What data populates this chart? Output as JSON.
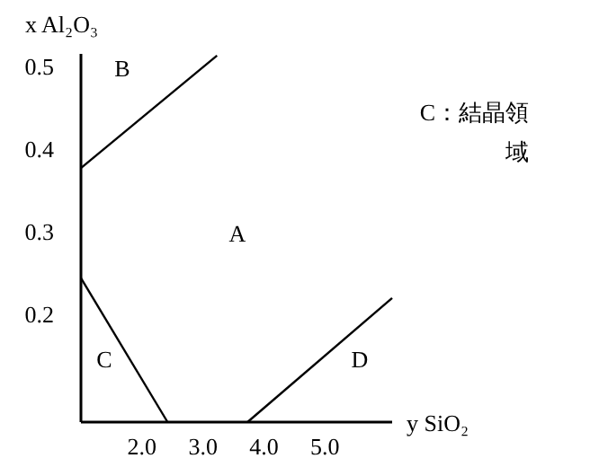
{
  "chart_data": {
    "type": "line",
    "xlabel": "y SiO₂",
    "ylabel": "x Al₂O₃",
    "xlim": [
      1.0,
      6.1
    ],
    "ylim": [
      0.07,
      0.515
    ],
    "xticks": [
      {
        "value": 2,
        "label": "2.0"
      },
      {
        "value": 3,
        "label": "3.0"
      },
      {
        "value": 4,
        "label": "4.0"
      },
      {
        "value": 5,
        "label": "5.0"
      }
    ],
    "yticks": [
      0.5,
      0.4,
      0.3,
      0.2
    ],
    "series": [
      {
        "color": "#000000",
        "x": [
          1.0,
          3.23
        ],
        "values": [
          0.377,
          0.513
        ]
      },
      {
        "color": "#000000",
        "x": [
          1.0,
          2.42
        ],
        "values": [
          0.244,
          0.07
        ]
      },
      {
        "color": "#000000",
        "x": [
          3.73,
          6.1
        ],
        "values": [
          0.07,
          0.22
        ]
      }
    ],
    "annotations": [
      "A",
      "B",
      "C",
      "D",
      "C：結晶領域"
    ],
    "marker": "none",
    "line_style": "solid"
  }
}
